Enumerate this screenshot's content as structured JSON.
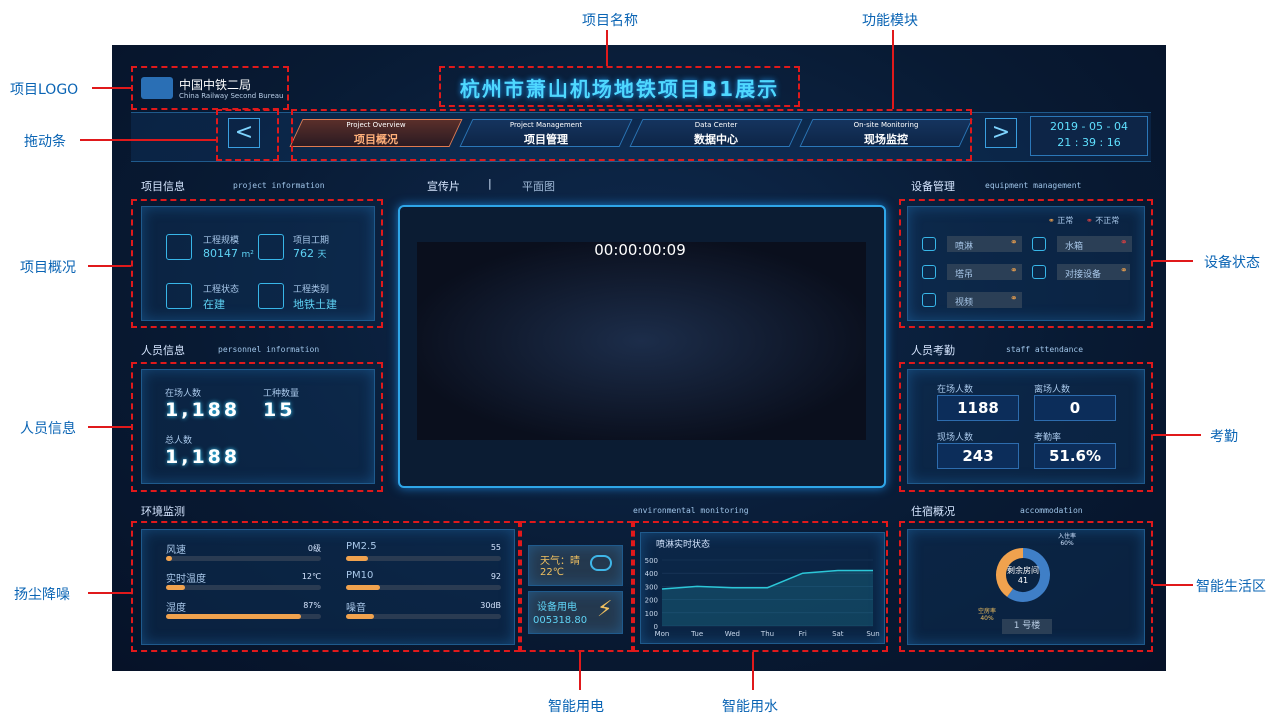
{
  "annotations": [
    "项目名称",
    "功能模块",
    "项目LOGO",
    "拖动条",
    "项目概况",
    "人员信息",
    "扬尘降噪",
    "智能用电",
    "智能用水",
    "设备状态",
    "考勤",
    "智能生活区"
  ],
  "header": {
    "logo_cn": "中国中铁二局",
    "logo_en": "China Railway Second Bureau",
    "title": "杭州市萧山机场地铁项目B1展示",
    "date": "2019 - 05 - 04",
    "time": "21 : 39 : 16"
  },
  "nav": [
    {
      "en": "Project Overview",
      "cn": "项目概况"
    },
    {
      "en": "Project Management",
      "cn": "项目管理"
    },
    {
      "en": "Data Center",
      "cn": "数据中心"
    },
    {
      "en": "On-site Monitoring",
      "cn": "现场监控"
    }
  ],
  "project_info": {
    "title": "项目信息",
    "subtitle": "project information",
    "items": [
      {
        "label": "工程规模",
        "value": "80147",
        "unit": "m²"
      },
      {
        "label": "项目工期",
        "value": "762",
        "unit": "天"
      },
      {
        "label": "工程状态",
        "value": "在建"
      },
      {
        "label": "工程类别",
        "value": "地铁土建"
      }
    ]
  },
  "personnel": {
    "title": "人员信息",
    "subtitle": "personnel information",
    "items": [
      {
        "label": "在场人数",
        "value": "1,188"
      },
      {
        "label": "工种数量",
        "value": "15"
      },
      {
        "label": "总人数",
        "value": "1,188"
      }
    ]
  },
  "video": {
    "tabs": [
      "宣传片",
      "|",
      "平面图"
    ],
    "timecode": "00:00:00:09"
  },
  "environment": {
    "title": "环境监测",
    "subtitle": "environmental monitoring",
    "items": [
      {
        "label": "风速",
        "value": "0级"
      },
      {
        "label": "实时温度",
        "value": "12℃"
      },
      {
        "label": "湿度",
        "value": "87%"
      },
      {
        "label": "PM2.5",
        "value": "55"
      },
      {
        "label": "PM10",
        "value": "92"
      },
      {
        "label": "噪音",
        "value": "30dB"
      }
    ]
  },
  "power": {
    "weather": "天气：晴",
    "temperature": "22℃",
    "label": "设备用电",
    "value": "005318.80"
  },
  "equipment": {
    "title": "设备管理",
    "subtitle": "equipment management",
    "legend": [
      "正常",
      "不正常"
    ],
    "items": [
      "喷淋",
      "水箱",
      "塔吊",
      "对接设备",
      "视频"
    ]
  },
  "attendance": {
    "title": "人员考勤",
    "subtitle": "staff attendance",
    "items": [
      {
        "label": "在场人数",
        "value": "1188"
      },
      {
        "label": "离场人数",
        "value": "0"
      },
      {
        "label": "现场人数",
        "value": "243"
      },
      {
        "label": "考勤率",
        "value": "51.6%"
      }
    ]
  },
  "accommodation": {
    "title": "住宿概况",
    "subtitle": "accommodation",
    "building": "1 号楼"
  },
  "chart_data": [
    {
      "type": "line",
      "title": "喷淋实时状态",
      "categories": [
        "Mon",
        "Tue",
        "Wed",
        "Thu",
        "Fri",
        "Sat",
        "Sun"
      ],
      "values": [
        280,
        300,
        290,
        290,
        400,
        420,
        420
      ],
      "color": "#2cc7d8",
      "ylim": [
        0,
        500
      ],
      "yticks": [
        0,
        100,
        200,
        300,
        400,
        500
      ],
      "grid": true
    },
    {
      "type": "pie",
      "categories": [
        "入住率",
        "空房率"
      ],
      "values": [
        60,
        40
      ],
      "value_labels": [
        "60%",
        "40%"
      ],
      "colors": [
        "#3f7fc7",
        "#f0a24e"
      ],
      "center_label": "剩余房间",
      "center_value": 41
    }
  ]
}
